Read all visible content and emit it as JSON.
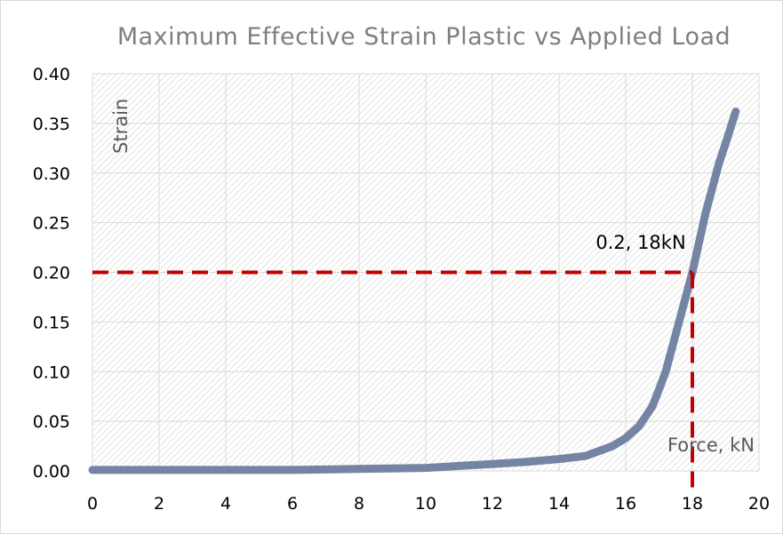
{
  "chart_data": {
    "type": "line",
    "title": "Maximum Effective Strain Plastic vs Applied Load",
    "xlabel": "Force, kN",
    "ylabel": "Strain",
    "xlim": [
      0,
      20
    ],
    "ylim": [
      0,
      0.4
    ],
    "x_ticks": [
      "0",
      "2",
      "4",
      "6",
      "8",
      "10",
      "12",
      "14",
      "16",
      "18",
      "20"
    ],
    "y_ticks": [
      "0.00",
      "0.05",
      "0.10",
      "0.15",
      "0.20",
      "0.25",
      "0.30",
      "0.35",
      "0.40"
    ],
    "grid": true,
    "legend": "none",
    "series": [
      {
        "color": "#7484a4",
        "x": [
          0,
          2,
          4,
          6,
          8,
          10,
          11,
          12,
          13,
          14,
          14.8,
          15.2,
          15.6,
          16,
          16.4,
          16.8,
          17,
          17.2,
          17.4,
          17.6,
          17.8,
          18,
          18.2,
          18.4,
          18.6,
          18.8,
          19,
          19.3
        ],
        "y": [
          0.001,
          0.001,
          0.001,
          0.001,
          0.002,
          0.003,
          0.005,
          0.007,
          0.009,
          0.012,
          0.015,
          0.02,
          0.025,
          0.033,
          0.045,
          0.065,
          0.082,
          0.1,
          0.125,
          0.15,
          0.175,
          0.2,
          0.23,
          0.26,
          0.285,
          0.31,
          0.33,
          0.362
        ]
      }
    ],
    "reference_lines": {
      "color": "#c00000",
      "x": 18,
      "y": 0.2
    },
    "annotation": {
      "text": "0.2, 18kN",
      "x": 18,
      "y": 0.2
    }
  }
}
